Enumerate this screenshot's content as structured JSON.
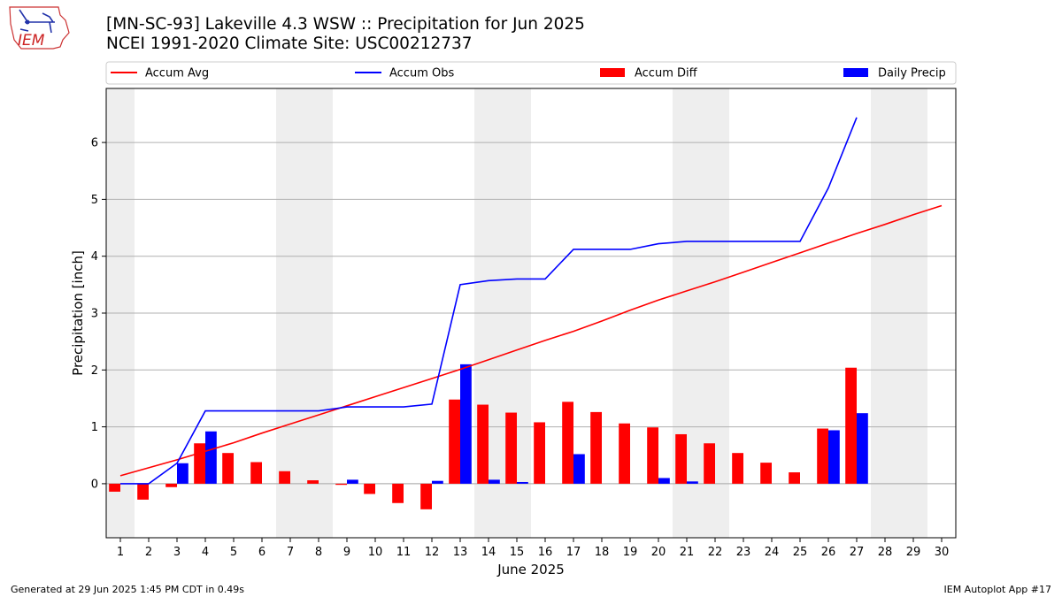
{
  "header": {
    "title_line1": "[MN-SC-93] Lakeville 4.3 WSW :: Precipitation for Jun 2025",
    "title_line2": "NCEI 1991-2020 Climate Site: USC00212737"
  },
  "logo": {
    "text": "IEM"
  },
  "footer": {
    "left": "Generated at 29 Jun 2025 1:45 PM CDT in 0.49s",
    "right": "IEM Autoplot App #17"
  },
  "colors": {
    "avg": "#ff0000",
    "obs": "#0000ff",
    "diff_bar": "#ff0000",
    "daily_bar": "#0000ff",
    "weekend_shade": "#eeeeee"
  },
  "chart_data": {
    "type": "bar",
    "xlabel": "June 2025",
    "ylabel": "Precipitation [inch]",
    "xlim": [
      0.5,
      30.5
    ],
    "ylim": [
      -0.95,
      6.95
    ],
    "yticks": [
      0,
      1,
      2,
      3,
      4,
      5,
      6
    ],
    "grid": true,
    "legend_position": "top",
    "days": [
      1,
      2,
      3,
      4,
      5,
      6,
      7,
      8,
      9,
      10,
      11,
      12,
      13,
      14,
      15,
      16,
      17,
      18,
      19,
      20,
      21,
      22,
      23,
      24,
      25,
      26,
      27,
      28,
      29,
      30
    ],
    "weekend_shading": [
      [
        0.5,
        1.5
      ],
      [
        6.5,
        8.5
      ],
      [
        13.5,
        15.5
      ],
      [
        20.5,
        22.5
      ],
      [
        27.5,
        29.5
      ]
    ],
    "legend": [
      {
        "label": "Accum Avg",
        "kind": "line",
        "color": "#ff0000"
      },
      {
        "label": "Accum Obs",
        "kind": "line",
        "color": "#0000ff"
      },
      {
        "label": "Accum Diff",
        "kind": "bar",
        "color": "#ff0000"
      },
      {
        "label": "Daily Precip",
        "kind": "bar",
        "color": "#0000ff"
      }
    ],
    "series": [
      {
        "name": "Accum Avg",
        "type": "line",
        "x": [
          1,
          2,
          3,
          4,
          5,
          6,
          7,
          8,
          9,
          10,
          11,
          12,
          13,
          14,
          15,
          16,
          17,
          18,
          19,
          20,
          21,
          22,
          23,
          24,
          25,
          26,
          27,
          28,
          29,
          30
        ],
        "values": [
          0.14,
          0.28,
          0.42,
          0.57,
          0.72,
          0.89,
          1.05,
          1.21,
          1.37,
          1.53,
          1.69,
          1.85,
          2.01,
          2.18,
          2.35,
          2.52,
          2.68,
          2.86,
          3.05,
          3.23,
          3.39,
          3.55,
          3.72,
          3.89,
          4.06,
          4.23,
          4.4,
          4.56,
          4.73,
          4.89
        ]
      },
      {
        "name": "Accum Obs",
        "type": "line",
        "x": [
          1,
          2,
          3,
          4,
          5,
          6,
          7,
          8,
          9,
          10,
          11,
          12,
          13,
          14,
          15,
          16,
          17,
          18,
          19,
          20,
          21,
          22,
          23,
          24,
          25,
          26,
          27
        ],
        "values": [
          0.0,
          0.0,
          0.36,
          1.28,
          1.28,
          1.28,
          1.28,
          1.28,
          1.35,
          1.35,
          1.35,
          1.4,
          3.5,
          3.57,
          3.6,
          3.6,
          4.12,
          4.12,
          4.12,
          4.22,
          4.26,
          4.26,
          4.26,
          4.26,
          4.26,
          5.2,
          6.44
        ]
      },
      {
        "name": "Accum Diff",
        "type": "bar",
        "x": [
          1,
          2,
          3,
          4,
          5,
          6,
          7,
          8,
          9,
          10,
          11,
          12,
          13,
          14,
          15,
          16,
          17,
          18,
          19,
          20,
          21,
          22,
          23,
          24,
          25,
          26,
          27
        ],
        "values": [
          -0.14,
          -0.28,
          -0.06,
          0.71,
          0.54,
          0.38,
          0.22,
          0.06,
          -0.02,
          -0.18,
          -0.34,
          -0.45,
          1.48,
          1.39,
          1.25,
          1.08,
          1.44,
          1.26,
          1.06,
          0.99,
          0.87,
          0.71,
          0.54,
          0.37,
          0.2,
          0.97,
          2.04
        ]
      },
      {
        "name": "Daily Precip",
        "type": "bar",
        "x": [
          1,
          2,
          3,
          4,
          5,
          6,
          7,
          8,
          9,
          10,
          11,
          12,
          13,
          14,
          15,
          16,
          17,
          18,
          19,
          20,
          21,
          22,
          23,
          24,
          25,
          26,
          27
        ],
        "values": [
          0.0,
          0.0,
          0.36,
          0.92,
          0.0,
          0.0,
          0.0,
          0.0,
          0.07,
          0.0,
          0.0,
          0.05,
          2.1,
          0.07,
          0.03,
          0.0,
          0.52,
          0.0,
          0.0,
          0.1,
          0.04,
          0.0,
          0.0,
          0.0,
          0.0,
          0.94,
          1.24
        ]
      }
    ]
  }
}
